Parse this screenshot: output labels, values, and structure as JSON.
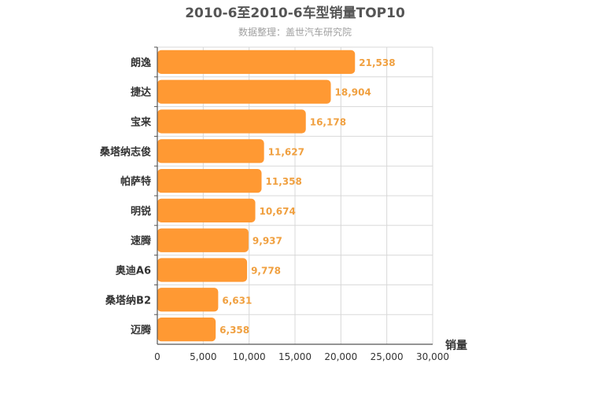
{
  "chart_data": {
    "type": "bar",
    "orientation": "horizontal",
    "title": "2010-6至2010-6车型销量TOP10",
    "subtitle": "数据整理：盖世汽车研究院",
    "xlabel": "销量",
    "xlim": [
      0,
      30000
    ],
    "ticks": [
      0,
      5000,
      10000,
      15000,
      20000,
      25000,
      30000
    ],
    "tick_labels": [
      "0",
      "5,000",
      "10,000",
      "15,000",
      "20,000",
      "25,000",
      "30,000"
    ],
    "categories": [
      "朗逸",
      "捷达",
      "宝来",
      "桑塔纳志俊",
      "帕萨特",
      "明锐",
      "速腾",
      "奥迪A6",
      "桑塔纳B2",
      "迈腾"
    ],
    "values": [
      21538,
      18904,
      16178,
      11627,
      11358,
      10674,
      9937,
      9778,
      6631,
      6358
    ],
    "value_labels": [
      "21,538",
      "18,904",
      "16,178",
      "11,627",
      "11,358",
      "10,674",
      "9,937",
      "9,778",
      "6,631",
      "6,358"
    ],
    "grid": true,
    "bar_color": "#ff9933",
    "value_label_color": "#f0a040"
  }
}
